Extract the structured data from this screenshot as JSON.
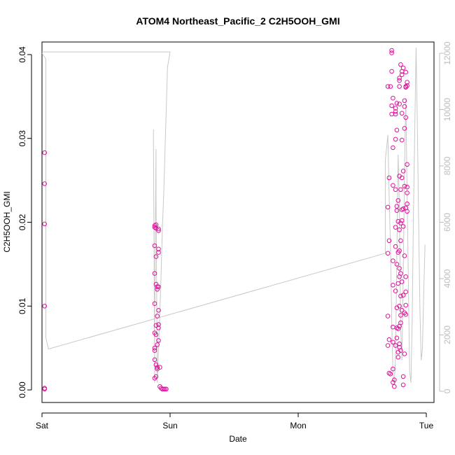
{
  "chart_data": {
    "type": "scatter",
    "title": "ATOM4 Northeast_Pacific_2 C2H5OOH_GMI",
    "xlabel": "Date",
    "ylabel": "C2H5OOH_GMI",
    "x_ticks": [
      "Sat",
      "Sun",
      "Mon",
      "Tue"
    ],
    "y_ticks": [
      "0.00",
      "0.01",
      "0.02",
      "0.03",
      "0.04"
    ],
    "y2_ticks": [
      "0",
      "2000",
      "4000",
      "6000",
      "8000",
      "10000",
      "12000"
    ],
    "xlim": [
      0,
      3.06
    ],
    "ylim": [
      -0.0015,
      0.0415
    ],
    "y2lim": [
      -400,
      12400
    ],
    "grid": false,
    "series": [
      {
        "kind": "points",
        "color": "#e0109a",
        "points": [
          [
            0.02,
            0.0283
          ],
          [
            0.02,
            0.0246
          ],
          [
            0.02,
            0.0198
          ],
          [
            0.02,
            0.01
          ],
          [
            0.02,
            0.0002
          ],
          [
            0.02,
            0.0001
          ],
          [
            0.88,
            0.0196
          ],
          [
            0.88,
            0.0194
          ],
          [
            0.88,
            0.0172
          ],
          [
            0.88,
            0.0139
          ],
          [
            0.88,
            0.0103
          ],
          [
            0.88,
            0.0068
          ],
          [
            0.88,
            0.005
          ],
          [
            0.88,
            0.0047
          ],
          [
            0.88,
            0.0036
          ],
          [
            0.88,
            0.0014
          ],
          [
            0.89,
            0.0197
          ],
          [
            0.89,
            0.0193
          ],
          [
            0.89,
            0.0159
          ],
          [
            0.89,
            0.0126
          ],
          [
            0.89,
            0.0077
          ],
          [
            0.89,
            0.0066
          ],
          [
            0.89,
            0.003
          ],
          [
            0.89,
            0.0016
          ],
          [
            0.9,
            0.0123
          ],
          [
            0.9,
            0.012
          ],
          [
            0.9,
            0.0088
          ],
          [
            0.9,
            0.0054
          ],
          [
            0.9,
            0.0027
          ],
          [
            0.9,
            0.0025
          ],
          [
            0.91,
            0.0192
          ],
          [
            0.91,
            0.019
          ],
          [
            0.91,
            0.0168
          ],
          [
            0.91,
            0.0164
          ],
          [
            0.91,
            0.0123
          ],
          [
            0.91,
            0.0095
          ],
          [
            0.91,
            0.0078
          ],
          [
            0.91,
            0.0074
          ],
          [
            0.91,
            0.0059
          ],
          [
            0.92,
            0.0027
          ],
          [
            0.92,
            0.0004
          ],
          [
            0.93,
            0.0002
          ],
          [
            0.94,
            0.0001
          ],
          [
            0.95,
            0.0001
          ],
          [
            0.96,
            0.0001
          ],
          [
            0.97,
            0.0001
          ],
          [
            2.7,
            0.0362
          ],
          [
            2.7,
            0.0218
          ],
          [
            2.7,
            0.0163
          ],
          [
            2.7,
            0.0088
          ],
          [
            2.7,
            0.0053
          ],
          [
            2.71,
            0.0253
          ],
          [
            2.71,
            0.0178
          ],
          [
            2.71,
            0.006
          ],
          [
            2.71,
            0.002
          ],
          [
            2.72,
            0.0362
          ],
          [
            2.72,
            0.0019
          ],
          [
            2.73,
            0.0405
          ],
          [
            2.73,
            0.0402
          ],
          [
            2.73,
            0.038
          ],
          [
            2.73,
            0.0339
          ],
          [
            2.73,
            0.0329
          ],
          [
            2.74,
            0.0348
          ],
          [
            2.74,
            0.0289
          ],
          [
            2.74,
            0.0244
          ],
          [
            2.74,
            0.0154
          ],
          [
            2.74,
            0.0125
          ],
          [
            2.74,
            0.0075
          ],
          [
            2.74,
            0.0057
          ],
          [
            2.74,
            0.0025
          ],
          [
            2.74,
            0.0009
          ],
          [
            2.75,
            0.0012
          ],
          [
            2.75,
            0.0004
          ],
          [
            2.76,
            0.0336
          ],
          [
            2.76,
            0.0332
          ],
          [
            2.76,
            0.0329
          ],
          [
            2.76,
            0.0299
          ],
          [
            2.76,
            0.0239
          ],
          [
            2.76,
            0.0194
          ],
          [
            2.76,
            0.0171
          ],
          [
            2.76,
            0.0118
          ],
          [
            2.76,
            0.0053
          ],
          [
            2.77,
            0.0342
          ],
          [
            2.77,
            0.031
          ],
          [
            2.77,
            0.0219
          ],
          [
            2.77,
            0.0214
          ],
          [
            2.77,
            0.015
          ],
          [
            2.77,
            0.0098
          ],
          [
            2.77,
            0.0074
          ],
          [
            2.77,
            0.0062
          ],
          [
            2.78,
            0.0226
          ],
          [
            2.78,
            0.0201
          ],
          [
            2.78,
            0.0164
          ],
          [
            2.78,
            0.0127
          ],
          [
            2.78,
            0.0073
          ],
          [
            2.78,
            0.0045
          ],
          [
            2.78,
            0.0039
          ],
          [
            2.79,
            0.0372
          ],
          [
            2.79,
            0.0369
          ],
          [
            2.79,
            0.0362
          ],
          [
            2.79,
            0.0341
          ],
          [
            2.79,
            0.0255
          ],
          [
            2.79,
            0.0191
          ],
          [
            2.79,
            0.0166
          ],
          [
            2.79,
            0.0145
          ],
          [
            2.79,
            0.0135
          ],
          [
            2.79,
            0.01
          ],
          [
            2.79,
            0.0076
          ],
          [
            2.79,
            0.0055
          ],
          [
            2.79,
            0.0051
          ],
          [
            2.8,
            0.0388
          ],
          [
            2.8,
            0.0239
          ],
          [
            2.8,
            0.0199
          ],
          [
            2.8,
            0.0178
          ],
          [
            2.8,
            0.0139
          ],
          [
            2.8,
            0.0112
          ],
          [
            2.8,
            0.0089
          ],
          [
            2.8,
            0.008
          ],
          [
            2.8,
            0.0047
          ],
          [
            2.81,
            0.038
          ],
          [
            2.81,
            0.0376
          ],
          [
            2.81,
            0.033
          ],
          [
            2.81,
            0.0298
          ],
          [
            2.81,
            0.0253
          ],
          [
            2.81,
            0.0215
          ],
          [
            2.81,
            0.0202
          ],
          [
            2.81,
            0.0129
          ],
          [
            2.81,
            0.0095
          ],
          [
            2.82,
            0.0384
          ],
          [
            2.82,
            0.0261
          ],
          [
            2.82,
            0.0216
          ],
          [
            2.82,
            0.0195
          ],
          [
            2.82,
            0.0113
          ],
          [
            2.82,
            0.0016
          ],
          [
            2.82,
            0.0006
          ],
          [
            2.83,
            0.0345
          ],
          [
            2.83,
            0.0338
          ],
          [
            2.83,
            0.0312
          ],
          [
            2.83,
            0.0243
          ],
          [
            2.83,
            0.016
          ],
          [
            2.83,
            0.0092
          ],
          [
            2.83,
            0.0043
          ],
          [
            2.84,
            0.0379
          ],
          [
            2.84,
            0.0362
          ],
          [
            2.84,
            0.0361
          ],
          [
            2.84,
            0.0325
          ],
          [
            2.84,
            0.0217
          ],
          [
            2.84,
            0.0135
          ],
          [
            2.84,
            0.0117
          ],
          [
            2.84,
            0.0101
          ],
          [
            2.84,
            0.009
          ],
          [
            2.85,
            0.0367
          ],
          [
            2.85,
            0.0363
          ],
          [
            2.85,
            0.0269
          ],
          [
            2.85,
            0.0242
          ],
          [
            2.85,
            0.0235
          ],
          [
            2.85,
            0.0222
          ],
          [
            2.85,
            0.0213
          ]
        ]
      },
      {
        "kind": "line",
        "color": "#c8c8c8",
        "axis": "right",
        "points": [
          [
            0.0,
            12000
          ],
          [
            0.03,
            11800
          ],
          [
            0.03,
            1900
          ],
          [
            0.05,
            1500
          ],
          [
            2.68,
            4900
          ],
          [
            2.68,
            8200
          ],
          [
            2.7,
            9100
          ],
          [
            2.71,
            7000
          ],
          [
            2.72,
            5200
          ],
          [
            2.73,
            2500
          ],
          [
            2.74,
            600
          ],
          [
            2.75,
            300
          ],
          [
            2.76,
            1200
          ],
          [
            2.77,
            4800
          ],
          [
            2.78,
            8400
          ],
          [
            2.79,
            6500
          ],
          [
            2.8,
            2300
          ],
          [
            2.81,
            1100
          ],
          [
            2.82,
            4200
          ],
          [
            2.83,
            7800
          ],
          [
            2.84,
            10400
          ],
          [
            2.85,
            7000
          ],
          [
            2.86,
            3900
          ],
          [
            2.87,
            700
          ],
          [
            2.88,
            300
          ],
          [
            2.89,
            2600
          ],
          [
            2.9,
            6400
          ],
          [
            2.91,
            9200
          ],
          [
            2.92,
            12200
          ],
          [
            2.93,
            9500
          ],
          [
            2.94,
            6100
          ],
          [
            2.95,
            2900
          ],
          [
            2.96,
            1100
          ],
          [
            2.97,
            1500
          ],
          [
            2.98,
            3600
          ],
          [
            2.99,
            5200
          ]
        ]
      },
      {
        "kind": "line",
        "color": "#c8c8c8",
        "axis": "right",
        "points": [
          [
            0.0,
            12050
          ],
          [
            1.0,
            12050
          ],
          [
            0.98,
            11500
          ],
          [
            0.97,
            10000
          ],
          [
            0.96,
            8500
          ],
          [
            0.95,
            7000
          ],
          [
            0.94,
            5800
          ],
          [
            0.93,
            4200
          ],
          [
            0.92,
            2800
          ],
          [
            0.91,
            1500
          ],
          [
            0.9,
            300
          ],
          [
            0.89,
            7000
          ],
          [
            0.89,
            8600
          ],
          [
            0.88,
            2700
          ],
          [
            0.88,
            300
          ],
          [
            0.87,
            9300
          ]
        ]
      }
    ]
  }
}
